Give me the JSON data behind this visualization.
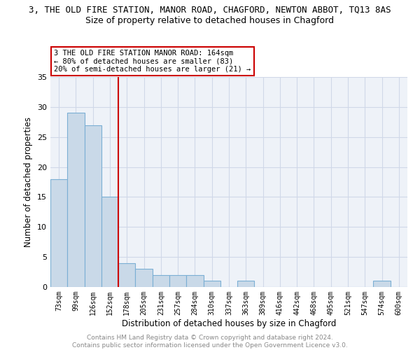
{
  "title": "3, THE OLD FIRE STATION, MANOR ROAD, CHAGFORD, NEWTON ABBOT, TQ13 8AS",
  "subtitle": "Size of property relative to detached houses in Chagford",
  "xlabel": "Distribution of detached houses by size in Chagford",
  "ylabel": "Number of detached properties",
  "categories": [
    "73sqm",
    "99sqm",
    "126sqm",
    "152sqm",
    "178sqm",
    "205sqm",
    "231sqm",
    "257sqm",
    "284sqm",
    "310sqm",
    "337sqm",
    "363sqm",
    "389sqm",
    "416sqm",
    "442sqm",
    "468sqm",
    "495sqm",
    "521sqm",
    "547sqm",
    "574sqm",
    "600sqm"
  ],
  "values": [
    18,
    29,
    27,
    15,
    4,
    3,
    2,
    2,
    2,
    1,
    0,
    1,
    0,
    0,
    0,
    0,
    0,
    0,
    0,
    1,
    0
  ],
  "bar_color": "#c9d9e8",
  "bar_edge_color": "#7bafd4",
  "bar_linewidth": 0.8,
  "grid_color": "#d0d8e8",
  "bg_color": "#eef2f8",
  "red_line_x": 3.5,
  "red_line_color": "#cc0000",
  "annotation_text": "3 THE OLD FIRE STATION MANOR ROAD: 164sqm\n← 80% of detached houses are smaller (83)\n20% of semi-detached houses are larger (21) →",
  "annotation_box_color": "#ffffff",
  "annotation_box_edge": "#cc0000",
  "footer": "Contains HM Land Registry data © Crown copyright and database right 2024.\nContains public sector information licensed under the Open Government Licence v3.0.",
  "ylim": [
    0,
    35
  ],
  "yticks": [
    0,
    5,
    10,
    15,
    20,
    25,
    30,
    35
  ]
}
